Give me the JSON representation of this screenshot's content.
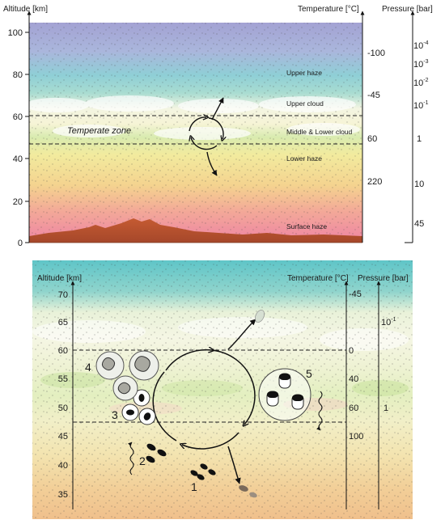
{
  "panel_top": {
    "altitude_label": "Altitude [km]",
    "temperature_label": "Temperature [°C]",
    "pressure_label": "Pressure [bar]",
    "altitude_ticks": [
      "100",
      "80",
      "60",
      "40",
      "20",
      "0"
    ],
    "temperature_ticks": [
      "-100",
      "-45",
      "60",
      "220"
    ],
    "pressure_ticks": [
      {
        "base": "10",
        "exp": "-4"
      },
      {
        "base": "10",
        "exp": "-3"
      },
      {
        "base": "10",
        "exp": "-2"
      },
      {
        "base": "10",
        "exp": "-1"
      },
      {
        "base": "1",
        "exp": ""
      },
      {
        "base": "10",
        "exp": ""
      },
      {
        "base": "45",
        "exp": ""
      }
    ],
    "zones": [
      "Upper haze",
      "Upper cloud",
      "Middle & Lower cloud",
      "Lower haze",
      "Surface haze"
    ],
    "temperate_zone": "Temperate zone"
  },
  "panel_bottom": {
    "altitude_label": "Altitude [km]",
    "temperature_label": "Temperature [°C]",
    "pressure_label": "Pressure [bar]",
    "altitude_ticks": [
      "70",
      "65",
      "60",
      "55",
      "50",
      "45",
      "40",
      "35"
    ],
    "temperature_ticks": [
      "-45",
      "0",
      "40",
      "60",
      "100"
    ],
    "pressure_ticks": [
      {
        "base": "10",
        "exp": "-1"
      },
      {
        "base": "1",
        "exp": ""
      }
    ],
    "stage_numbers": [
      "1",
      "2",
      "3",
      "4",
      "5"
    ]
  },
  "colors": {
    "haze_top": "#9a9ed0",
    "upper_haze": "#8fcfd6",
    "cloud": "#f3f5dc",
    "lower_haze": "#f2e18a",
    "surface_haze": "#ee8aa6",
    "terrain": "#c8643c",
    "bottom_top": "#6ec8c8",
    "bottom_low": "#f0c090"
  }
}
